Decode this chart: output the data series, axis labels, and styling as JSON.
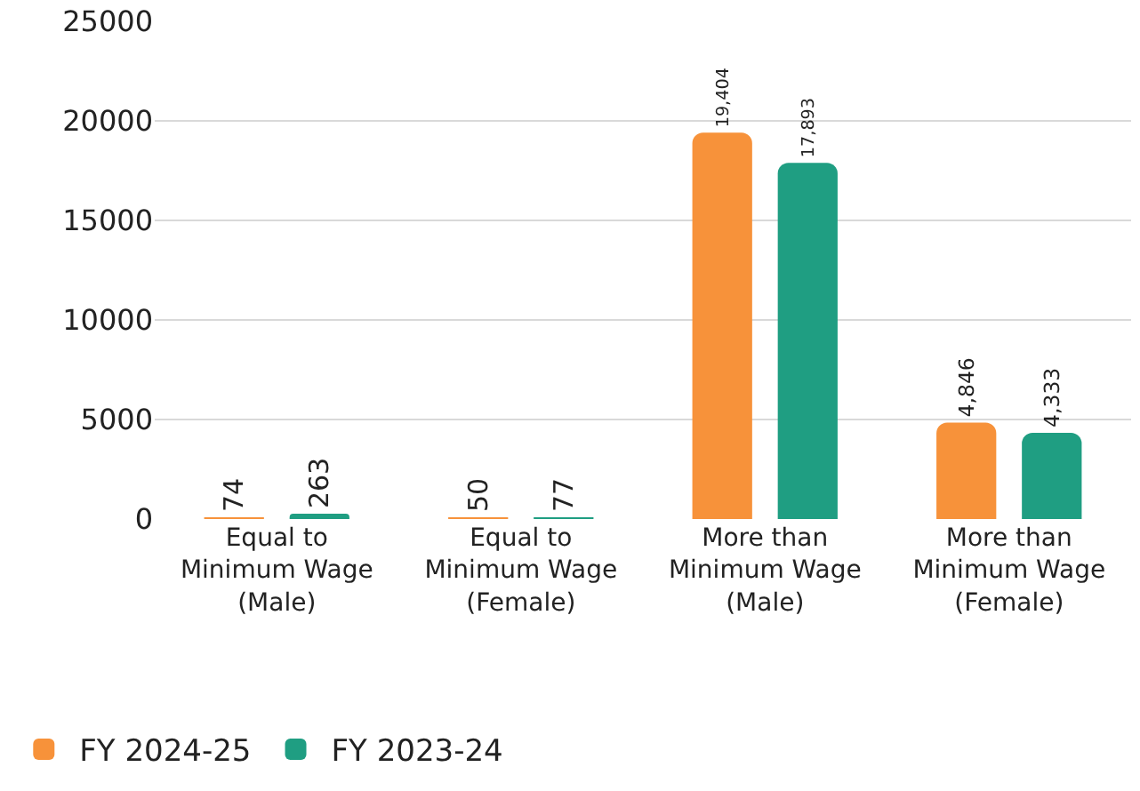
{
  "chart_data": {
    "type": "bar",
    "categories": [
      "Equal to Minimum Wage (Male)",
      "Equal to Minimum Wage (Female)",
      "More than Minimum Wage (Male)",
      "More than Minimum Wage (Female)"
    ],
    "series": [
      {
        "name": "FY 2024-25",
        "color": "#f7923a",
        "values": [
          74,
          50,
          19404,
          4846
        ],
        "value_labels": [
          "74",
          "50",
          "19,404",
          "4,846"
        ]
      },
      {
        "name": "FY 2023-24",
        "color": "#1f9e82",
        "values": [
          263,
          77,
          17893,
          4333
        ],
        "value_labels": [
          "263",
          "77",
          "17,893",
          "4,333"
        ]
      }
    ],
    "ylim": [
      0,
      25000
    ],
    "yticks": [
      0,
      5000,
      10000,
      15000,
      20000,
      25000
    ],
    "grid": "y",
    "legend": "bottom left"
  }
}
